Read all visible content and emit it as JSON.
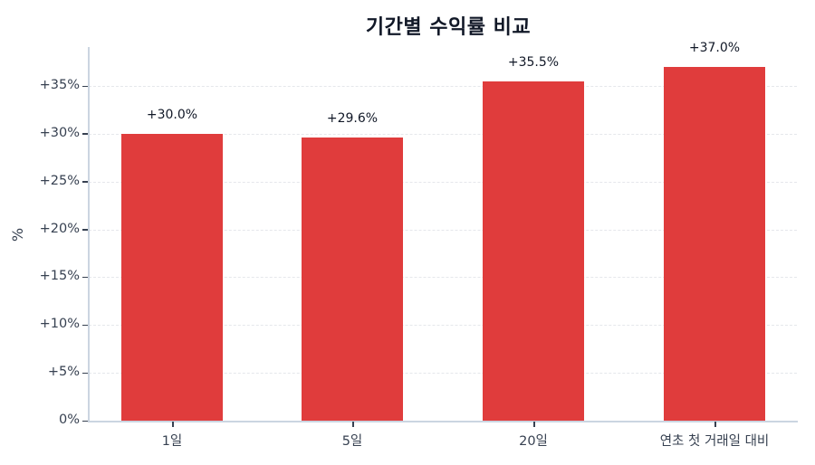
{
  "chart_data": {
    "type": "bar",
    "title": "기간별 수익률 비교",
    "xlabel": "",
    "ylabel": "%",
    "categories": [
      "1일",
      "5일",
      "20일",
      "연초 첫 거래일 대비"
    ],
    "values": [
      30.0,
      29.6,
      35.5,
      37.0
    ],
    "data_labels": [
      "+30.0%",
      "+29.6%",
      "+35.5%",
      "+37.0%"
    ],
    "ylim": [
      0,
      39
    ],
    "yticks": [
      0,
      5,
      10,
      15,
      20,
      25,
      30,
      35
    ],
    "ytick_labels": [
      "0%",
      "+5%",
      "+10%",
      "+15%",
      "+20%",
      "+25%",
      "+30%",
      "+35%"
    ],
    "grid": "horizontal dashed",
    "legend": null,
    "bar_color": "#e03c3c"
  }
}
